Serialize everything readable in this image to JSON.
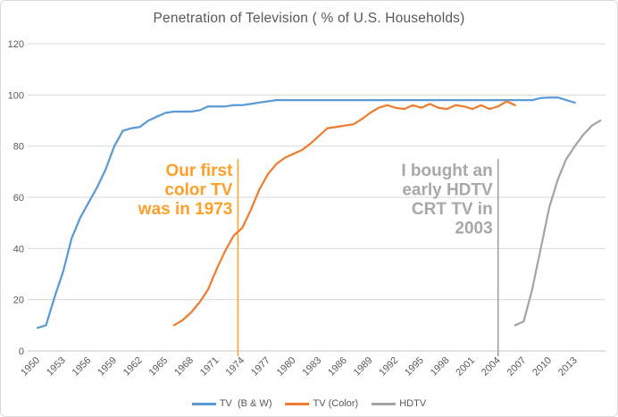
{
  "chart_data": {
    "type": "line",
    "title": "Penetration of Television ( % of U.S. Households)",
    "xlabel": "",
    "ylabel": "",
    "grid": true,
    "legend_position": "bottom",
    "y_axis": {
      "min": 0,
      "max": 120,
      "step": 20,
      "ticks": [
        0,
        20,
        40,
        60,
        80,
        100,
        120
      ]
    },
    "x_axis": {
      "unit": "year",
      "first_year": 1950,
      "last_plotted_year": 2016,
      "tick_labels": [
        "1950",
        "1953",
        "1956",
        "1959",
        "1962",
        "1965",
        "1968",
        "1971",
        "1974",
        "1977",
        "1980",
        "1983",
        "1986",
        "1989",
        "1992",
        "1995",
        "1998",
        "2001",
        "2004",
        "2007",
        "2010",
        "2013"
      ],
      "label_rotation_deg": -45
    },
    "series": [
      {
        "id": "tv-bw",
        "name": "TV  (B & W)",
        "color": "#5B9BD5",
        "points": [
          [
            1950,
            9
          ],
          [
            1951,
            10
          ],
          [
            1952,
            21
          ],
          [
            1953,
            31
          ],
          [
            1954,
            44
          ],
          [
            1955,
            52
          ],
          [
            1956,
            58
          ],
          [
            1957,
            64
          ],
          [
            1958,
            71
          ],
          [
            1959,
            80
          ],
          [
            1960,
            86
          ],
          [
            1961,
            87
          ],
          [
            1962,
            87.5
          ],
          [
            1963,
            90
          ],
          [
            1964,
            91.5
          ],
          [
            1965,
            93
          ],
          [
            1966,
            93.5
          ],
          [
            1967,
            93.5
          ],
          [
            1968,
            93.5
          ],
          [
            1969,
            94
          ],
          [
            1970,
            95.5
          ],
          [
            1971,
            95.5
          ],
          [
            1972,
            95.5
          ],
          [
            1973,
            96
          ],
          [
            1974,
            96
          ],
          [
            1975,
            96.5
          ],
          [
            1976,
            97
          ],
          [
            1977,
            97.5
          ],
          [
            1978,
            98
          ],
          [
            1980,
            98
          ],
          [
            1985,
            98
          ],
          [
            1990,
            98
          ],
          [
            1995,
            98
          ],
          [
            2000,
            98
          ],
          [
            2005,
            98
          ],
          [
            2008,
            98
          ],
          [
            2009,
            98.8
          ],
          [
            2010,
            99
          ],
          [
            2011,
            99
          ],
          [
            2012,
            98
          ],
          [
            2013,
            97
          ]
        ]
      },
      {
        "id": "tv-color",
        "name": "TV (Color)",
        "color": "#ED7D31",
        "points": [
          [
            1966,
            10
          ],
          [
            1967,
            12
          ],
          [
            1968,
            15
          ],
          [
            1969,
            19
          ],
          [
            1970,
            24
          ],
          [
            1971,
            32
          ],
          [
            1972,
            39
          ],
          [
            1973,
            45
          ],
          [
            1974,
            48
          ],
          [
            1975,
            55
          ],
          [
            1976,
            63
          ],
          [
            1977,
            69
          ],
          [
            1978,
            73
          ],
          [
            1979,
            75.5
          ],
          [
            1980,
            77
          ],
          [
            1981,
            78.5
          ],
          [
            1982,
            81
          ],
          [
            1983,
            84
          ],
          [
            1984,
            87
          ],
          [
            1985,
            87.5
          ],
          [
            1986,
            88
          ],
          [
            1987,
            88.5
          ],
          [
            1988,
            90.5
          ],
          [
            1989,
            93
          ],
          [
            1990,
            95
          ],
          [
            1991,
            96
          ],
          [
            1992,
            95
          ],
          [
            1993,
            94.5
          ],
          [
            1994,
            96
          ],
          [
            1995,
            95
          ],
          [
            1996,
            96.5
          ],
          [
            1997,
            95
          ],
          [
            1998,
            94.5
          ],
          [
            1999,
            96
          ],
          [
            2000,
            95.5
          ],
          [
            2001,
            94.5
          ],
          [
            2002,
            96
          ],
          [
            2003,
            94.5
          ],
          [
            2004,
            95.5
          ],
          [
            2005,
            97.5
          ],
          [
            2006,
            96
          ]
        ]
      },
      {
        "id": "hdtv",
        "name": "HDTV",
        "color": "#A5A5A5",
        "points": [
          [
            2006,
            10
          ],
          [
            2007,
            11.5
          ],
          [
            2008,
            24
          ],
          [
            2009,
            40
          ],
          [
            2010,
            56
          ],
          [
            2011,
            67
          ],
          [
            2012,
            75
          ],
          [
            2013,
            80
          ],
          [
            2014,
            84.5
          ],
          [
            2015,
            88
          ],
          [
            2016,
            90
          ]
        ]
      }
    ],
    "annotations": [
      {
        "id": "color-tv-note",
        "lines": [
          "Our first",
          "color TV",
          "was in 1973"
        ],
        "text": "Our first color TV was in 1973",
        "color": "#FFA028",
        "line_color": "#FFA028",
        "line_year": 1973.5
      },
      {
        "id": "hdtv-note",
        "lines": [
          "I bought an",
          "early HDTV",
          "CRT TV in",
          "2003"
        ],
        "text": "I bought an early HDTV CRT TV in 2003",
        "color": "#A8A8A8",
        "line_color": "#9C9C9C",
        "line_year": 2004
      }
    ],
    "style": {
      "gridline_color": "#D9D9D9",
      "axis_line_color": "#C6C6C6",
      "axis_text_color": "#595959",
      "title_color": "#595959",
      "background": "#FFFFFF"
    }
  }
}
